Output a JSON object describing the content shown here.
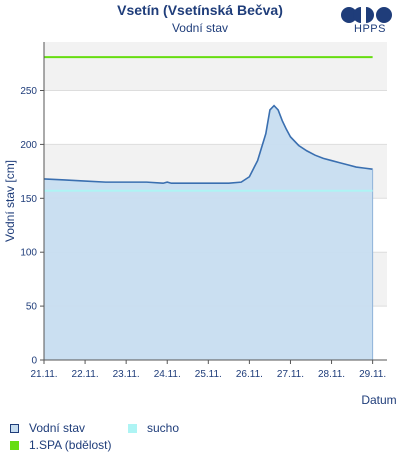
{
  "header": {
    "title": "Vsetín (Vsetínská Bečva)",
    "subtitle": "Vodní stav",
    "logo_text": "HPPS"
  },
  "chart_data": {
    "type": "area",
    "title": "Vsetín (Vsetínská Bečva)",
    "subtitle": "Vodní stav",
    "xlabel": "Datum",
    "ylabel": "Vodní stav [cm]",
    "ylim": [
      0,
      295
    ],
    "yticks": [
      0,
      50,
      100,
      150,
      200,
      250
    ],
    "xlim": [
      0,
      8.35
    ],
    "xticks": [
      "21.11.",
      "22.11.",
      "23.11.",
      "24.11.",
      "25.11.",
      "26.11.",
      "27.11.",
      "28.11.",
      "29.11."
    ],
    "grid": true,
    "legend_position": "bottom-left",
    "series": [
      {
        "name": "Vodní stav",
        "color": "#3a6fb0",
        "fill": "#c7ddf0",
        "x": [
          0,
          0.5,
          1,
          1.5,
          2,
          2.5,
          2.9,
          3.0,
          3.1,
          3.5,
          4.0,
          4.5,
          4.8,
          5.0,
          5.2,
          5.4,
          5.5,
          5.6,
          5.7,
          5.8,
          5.9,
          6.0,
          6.2,
          6.4,
          6.6,
          6.8,
          7.0,
          7.2,
          7.4,
          7.6,
          7.8,
          8.0
        ],
        "y": [
          168,
          167,
          166,
          165,
          165,
          165,
          164,
          165,
          164,
          164,
          164,
          164,
          165,
          170,
          185,
          210,
          232,
          236,
          232,
          222,
          214,
          207,
          199,
          194,
          190,
          187,
          185,
          183,
          181,
          179,
          178,
          177
        ]
      },
      {
        "name": "sucho",
        "color": "#aef4f4",
        "x": [
          0,
          8.0
        ],
        "y": [
          157,
          157
        ]
      },
      {
        "name": "1.SPA (bdělost)",
        "color": "#66dd11",
        "x": [
          0,
          8.0
        ],
        "y": [
          281,
          281
        ]
      }
    ]
  },
  "legend": {
    "items": [
      {
        "label": "Vodní stav",
        "swatch": "#c7ddf0",
        "border": "#1f3d7a"
      },
      {
        "label": "sucho",
        "swatch": "#aef4f4",
        "border": "#aef4f4"
      },
      {
        "label": "1.SPA (bdělost)",
        "swatch": "#66dd11",
        "border": "#66dd11"
      }
    ]
  }
}
